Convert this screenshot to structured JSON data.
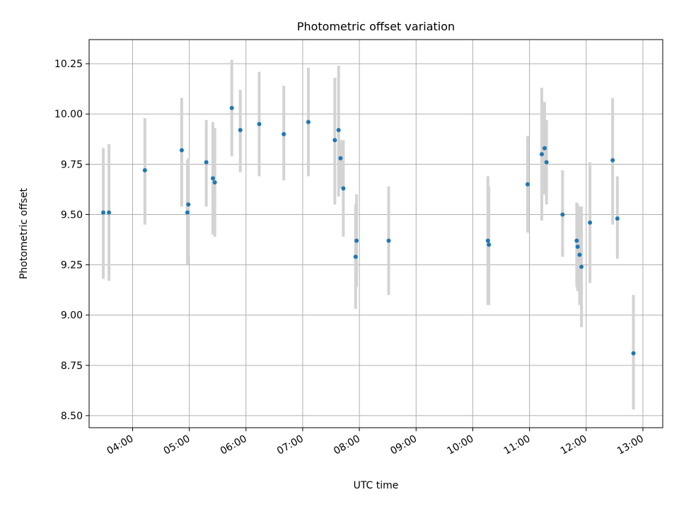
{
  "chart_data": {
    "type": "scatter",
    "title": "Photometric offset variation",
    "xlabel": "UTC time",
    "ylabel": "Photometric offset",
    "xlim": [
      "03:14",
      "13:21"
    ],
    "ylim": [
      8.44,
      10.37
    ],
    "x_ticks": [
      "04:00",
      "05:00",
      "06:00",
      "07:00",
      "08:00",
      "09:00",
      "10:00",
      "11:00",
      "12:00",
      "13:00"
    ],
    "y_ticks": [
      8.5,
      8.75,
      9.0,
      9.25,
      9.5,
      9.75,
      10.0,
      10.25
    ],
    "grid": true,
    "point_color": "#1f77b4",
    "errorbar_color": "#d3d3d3",
    "points": [
      {
        "x": "03:29",
        "y": 9.51,
        "ylow": 9.18,
        "yhigh": 9.83
      },
      {
        "x": "03:35",
        "y": 9.51,
        "ylow": 9.17,
        "yhigh": 9.85
      },
      {
        "x": "04:13",
        "y": 9.72,
        "ylow": 9.45,
        "yhigh": 9.98
      },
      {
        "x": "04:52",
        "y": 9.82,
        "ylow": 9.54,
        "yhigh": 10.08
      },
      {
        "x": "04:58",
        "y": 9.51,
        "ylow": 9.25,
        "yhigh": 9.77
      },
      {
        "x": "04:59",
        "y": 9.55,
        "ylow": 9.3,
        "yhigh": 9.78
      },
      {
        "x": "05:18",
        "y": 9.76,
        "ylow": 9.54,
        "yhigh": 9.97
      },
      {
        "x": "05:25",
        "y": 9.68,
        "ylow": 9.4,
        "yhigh": 9.96
      },
      {
        "x": "05:27",
        "y": 9.66,
        "ylow": 9.39,
        "yhigh": 9.93
      },
      {
        "x": "05:45",
        "y": 10.03,
        "ylow": 9.79,
        "yhigh": 10.27
      },
      {
        "x": "05:54",
        "y": 9.92,
        "ylow": 9.71,
        "yhigh": 10.12
      },
      {
        "x": "06:14",
        "y": 9.95,
        "ylow": 9.69,
        "yhigh": 10.21
      },
      {
        "x": "06:40",
        "y": 9.9,
        "ylow": 9.67,
        "yhigh": 10.14
      },
      {
        "x": "07:06",
        "y": 9.96,
        "ylow": 9.69,
        "yhigh": 10.23
      },
      {
        "x": "07:34",
        "y": 9.87,
        "ylow": 9.55,
        "yhigh": 10.18
      },
      {
        "x": "07:38",
        "y": 9.92,
        "ylow": 9.59,
        "yhigh": 10.24
      },
      {
        "x": "07:40",
        "y": 9.78,
        "ylow": 9.63,
        "yhigh": 9.87
      },
      {
        "x": "07:43",
        "y": 9.63,
        "ylow": 9.39,
        "yhigh": 9.87
      },
      {
        "x": "07:56",
        "y": 9.29,
        "ylow": 9.03,
        "yhigh": 9.55
      },
      {
        "x": "07:57",
        "y": 9.37,
        "ylow": 9.14,
        "yhigh": 9.6
      },
      {
        "x": "08:31",
        "y": 9.37,
        "ylow": 9.1,
        "yhigh": 9.64
      },
      {
        "x": "10:16",
        "y": 9.37,
        "ylow": 9.05,
        "yhigh": 9.69
      },
      {
        "x": "10:17",
        "y": 9.35,
        "ylow": 9.05,
        "yhigh": 9.64
      },
      {
        "x": "10:58",
        "y": 9.65,
        "ylow": 9.41,
        "yhigh": 9.89
      },
      {
        "x": "11:13",
        "y": 9.8,
        "ylow": 9.47,
        "yhigh": 10.13
      },
      {
        "x": "11:16",
        "y": 9.83,
        "ylow": 9.6,
        "yhigh": 10.06
      },
      {
        "x": "11:18",
        "y": 9.76,
        "ylow": 9.55,
        "yhigh": 9.97
      },
      {
        "x": "11:35",
        "y": 9.5,
        "ylow": 9.29,
        "yhigh": 9.72
      },
      {
        "x": "11:50",
        "y": 9.37,
        "ylow": 9.14,
        "yhigh": 9.56
      },
      {
        "x": "11:51",
        "y": 9.34,
        "ylow": 9.12,
        "yhigh": 9.55
      },
      {
        "x": "11:53",
        "y": 9.3,
        "ylow": 9.05,
        "yhigh": 9.54
      },
      {
        "x": "11:55",
        "y": 9.24,
        "ylow": 8.94,
        "yhigh": 9.54
      },
      {
        "x": "12:04",
        "y": 9.46,
        "ylow": 9.16,
        "yhigh": 9.76
      },
      {
        "x": "12:28",
        "y": 9.77,
        "ylow": 9.45,
        "yhigh": 10.08
      },
      {
        "x": "12:33",
        "y": 9.48,
        "ylow": 9.28,
        "yhigh": 9.69
      },
      {
        "x": "12:50",
        "y": 8.81,
        "ylow": 8.53,
        "yhigh": 9.1
      }
    ]
  }
}
